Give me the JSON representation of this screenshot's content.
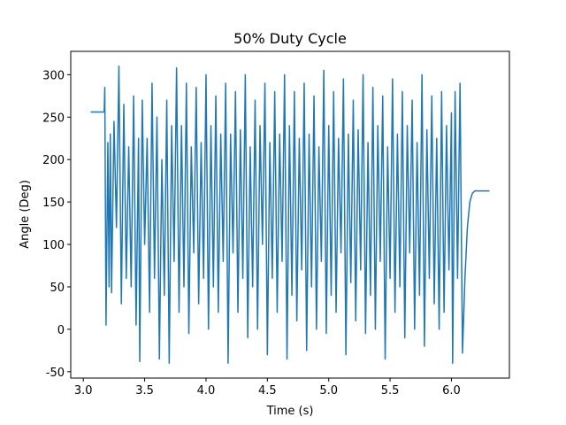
{
  "chart_data": {
    "type": "line",
    "title": "50% Duty Cycle",
    "xlabel": "Time (s)",
    "ylabel": "Angle (Deg)",
    "x": [
      3.06,
      3.17,
      3.175,
      3.185,
      3.2,
      3.21,
      3.22,
      3.23,
      3.25,
      3.27,
      3.29,
      3.31,
      3.33,
      3.35,
      3.37,
      3.39,
      3.41,
      3.43,
      3.45,
      3.46,
      3.48,
      3.5,
      3.52,
      3.54,
      3.56,
      3.58,
      3.6,
      3.62,
      3.64,
      3.66,
      3.68,
      3.7,
      3.72,
      3.74,
      3.76,
      3.78,
      3.8,
      3.82,
      3.84,
      3.86,
      3.88,
      3.9,
      3.92,
      3.94,
      3.96,
      3.98,
      4.0,
      4.02,
      4.04,
      4.06,
      4.08,
      4.1,
      4.12,
      4.14,
      4.16,
      4.18,
      4.2,
      4.22,
      4.24,
      4.26,
      4.28,
      4.3,
      4.32,
      4.34,
      4.36,
      4.38,
      4.4,
      4.42,
      4.44,
      4.46,
      4.48,
      4.5,
      4.52,
      4.54,
      4.56,
      4.58,
      4.6,
      4.62,
      4.64,
      4.66,
      4.68,
      4.7,
      4.72,
      4.74,
      4.76,
      4.78,
      4.8,
      4.82,
      4.84,
      4.86,
      4.88,
      4.9,
      4.92,
      4.94,
      4.96,
      4.98,
      5.0,
      5.02,
      5.04,
      5.06,
      5.08,
      5.1,
      5.12,
      5.14,
      5.16,
      5.18,
      5.2,
      5.22,
      5.24,
      5.26,
      5.28,
      5.3,
      5.32,
      5.34,
      5.36,
      5.38,
      5.4,
      5.42,
      5.44,
      5.46,
      5.48,
      5.5,
      5.52,
      5.54,
      5.56,
      5.58,
      5.6,
      5.62,
      5.64,
      5.66,
      5.68,
      5.7,
      5.72,
      5.74,
      5.76,
      5.78,
      5.8,
      5.82,
      5.84,
      5.86,
      5.88,
      5.9,
      5.92,
      5.94,
      5.96,
      5.98,
      6.0,
      6.01,
      6.03,
      6.05,
      6.07,
      6.09,
      6.11,
      6.13,
      6.15,
      6.17,
      6.19,
      6.31
    ],
    "series": [
      {
        "color": "#1f77b4",
        "values": [
          256,
          256,
          285,
          5,
          220,
          50,
          230,
          43,
          245,
          120,
          310,
          30,
          265,
          60,
          215,
          50,
          275,
          5,
          225,
          -38,
          270,
          100,
          225,
          20,
          290,
          60,
          250,
          -35,
          200,
          40,
          270,
          -40,
          240,
          80,
          308,
          20,
          240,
          50,
          290,
          -5,
          215,
          90,
          285,
          30,
          220,
          60,
          300,
          0,
          240,
          50,
          275,
          20,
          230,
          80,
          290,
          -40,
          230,
          90,
          280,
          20,
          235,
          60,
          300,
          -10,
          215,
          50,
          270,
          0,
          240,
          100,
          290,
          -30,
          220,
          60,
          280,
          20,
          230,
          80,
          300,
          -35,
          240,
          40,
          280,
          10,
          225,
          70,
          290,
          -25,
          230,
          50,
          275,
          0,
          215,
          80,
          305,
          -5,
          240,
          40,
          280,
          20,
          225,
          90,
          295,
          -30,
          230,
          55,
          270,
          10,
          235,
          70,
          300,
          -5,
          220,
          40,
          285,
          0,
          240,
          80,
          275,
          -35,
          215,
          60,
          295,
          20,
          230,
          50,
          280,
          -10,
          240,
          90,
          270,
          0,
          220,
          40,
          300,
          -20,
          235,
          60,
          275,
          30,
          225,
          0,
          280,
          20,
          240,
          70,
          255,
          -40,
          280,
          60,
          290,
          -28,
          60,
          120,
          150,
          160,
          163,
          163
        ]
      }
    ],
    "xlim": [
      2.8975,
      6.4725
    ],
    "ylim": [
      -57.5,
      327.5
    ],
    "xticks": [
      {
        "value": 3,
        "label": "3.0"
      },
      3.5,
      {
        "value": 4,
        "label": "4.0"
      },
      4.5,
      {
        "value": 5,
        "label": "5.0"
      },
      5.5,
      {
        "value": 6,
        "label": "6.0"
      }
    ],
    "yticks": [
      -50,
      0,
      50,
      100,
      150,
      200,
      250,
      300
    ]
  }
}
